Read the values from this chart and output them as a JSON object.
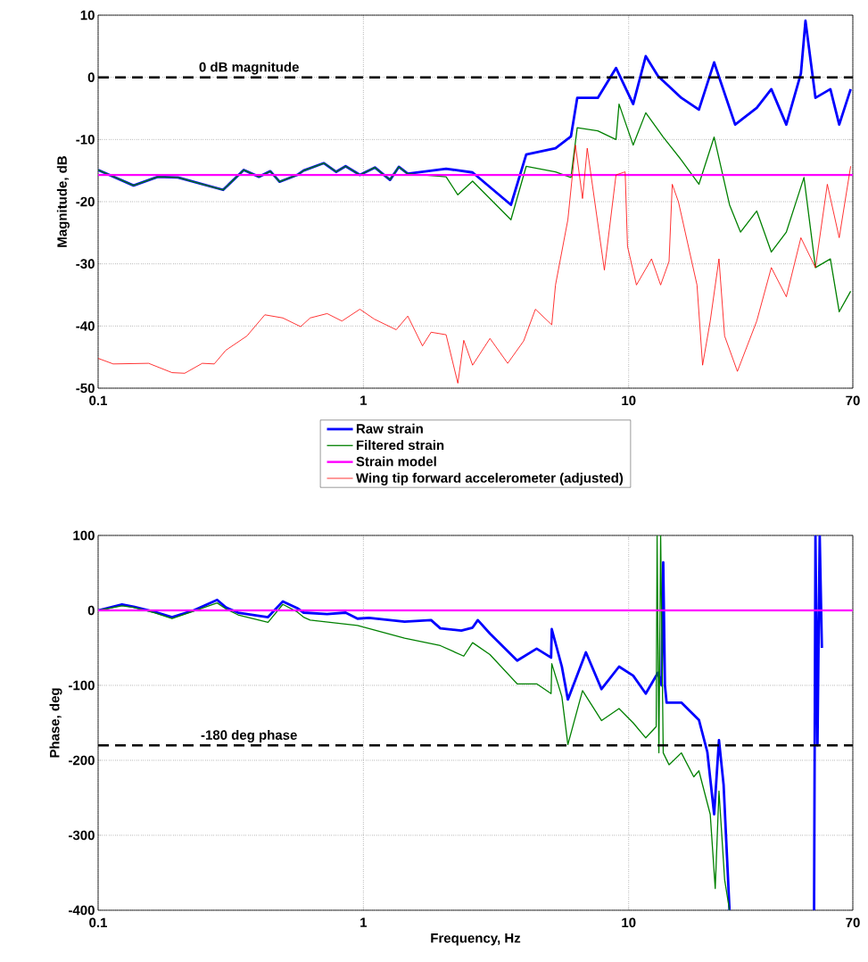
{
  "chart_data": [
    {
      "type": "line",
      "ylabel": "Magnitude, dB",
      "log": "x",
      "grid": true,
      "legend": "bottom",
      "xlim": [
        0.1,
        70
      ],
      "xticks": [
        0.1,
        1,
        10,
        70
      ],
      "ylim": [
        -50,
        10
      ],
      "yticks": [
        -50,
        -40,
        -30,
        -20,
        -10,
        0,
        10
      ],
      "ref_lines": [
        {
          "axis": "y",
          "value": 0,
          "label": "0 dB magnitude",
          "color": "#000000",
          "line_style": "dashed"
        }
      ],
      "series": [
        {
          "name": "Raw strain",
          "color": "#0000ff",
          "x": [
            0.1,
            0.136,
            0.168,
            0.2,
            0.296,
            0.354,
            0.404,
            0.446,
            0.483,
            0.563,
            0.595,
            0.71,
            0.79,
            0.857,
            0.97,
            1.105,
            1.26,
            1.36,
            1.47,
            2.05,
            2.58,
            3.6,
            4.11,
            5.3,
            6.06,
            6.4,
            7.65,
            8.96,
            10.4,
            11.6,
            12.9,
            15.8,
            18.4,
            21.0,
            25.2,
            30.4,
            34.5,
            39.3,
            44.6,
            46.4,
            50.6,
            57.6,
            62.2,
            68.7
          ],
          "values": [
            -14.9,
            -17.4,
            -16,
            -16.1,
            -18.1,
            -14.9,
            -16,
            -15.1,
            -16.8,
            -15.7,
            -15,
            -13.8,
            -15.2,
            -14.3,
            -15.7,
            -14.5,
            -16.5,
            -14.4,
            -15.5,
            -14.7,
            -15.3,
            -20.5,
            -12.4,
            -11.4,
            -9.5,
            -3.3,
            -3.3,
            1.5,
            -4.3,
            3.4,
            0.2,
            -3.3,
            -5.2,
            2.4,
            -7.6,
            -4.9,
            -1.9,
            -7.6,
            0.6,
            9.1,
            -3.3,
            -1.9,
            -7.6,
            -1.9
          ]
        },
        {
          "name": "Filtered strain",
          "color": "#008000",
          "x": [
            0.1,
            0.136,
            0.168,
            0.2,
            0.296,
            0.354,
            0.404,
            0.446,
            0.483,
            0.563,
            0.595,
            0.71,
            0.79,
            0.857,
            0.97,
            1.105,
            1.26,
            1.36,
            1.47,
            2.05,
            2.27,
            2.58,
            3.6,
            4.11,
            5.3,
            6.06,
            6.4,
            7.65,
            8.96,
            9.2,
            10.4,
            11.6,
            13.5,
            15.8,
            18.4,
            21.0,
            24,
            26.4,
            30.4,
            34.5,
            39.3,
            45.8,
            50.6,
            57.6,
            62.2,
            68.7
          ],
          "values": [
            -14.9,
            -17.4,
            -16,
            -16.1,
            -18.1,
            -14.9,
            -16,
            -15.1,
            -16.8,
            -15.7,
            -15,
            -13.8,
            -15.2,
            -14.3,
            -15.7,
            -14.5,
            -16.5,
            -14.4,
            -15.5,
            -16.0,
            -18.9,
            -16.7,
            -22.9,
            -14.3,
            -15.2,
            -16.1,
            -8.1,
            -8.6,
            -10,
            -4.3,
            -10.9,
            -5.7,
            -9.6,
            -13.3,
            -17.2,
            -9.6,
            -20.5,
            -24.9,
            -21.5,
            -28.1,
            -24.9,
            -16.1,
            -30.6,
            -29.2,
            -37.7,
            -34.4
          ]
        },
        {
          "name": "Strain model",
          "color": "#ff00ff",
          "x": [
            0.1,
            70
          ],
          "values": [
            -15.7,
            -15.7
          ]
        },
        {
          "name": "Wing tip forward accelerometer (adjusted)",
          "color": "#ff0000",
          "x": [
            0.1,
            0.114,
            0.155,
            0.19,
            0.212,
            0.247,
            0.274,
            0.303,
            0.364,
            0.425,
            0.497,
            0.58,
            0.63,
            0.73,
            0.83,
            0.97,
            1.1,
            1.33,
            1.47,
            1.67,
            1.8,
            2.05,
            2.27,
            2.39,
            2.58,
            3.0,
            3.5,
            4.02,
            4.45,
            5.13,
            5.3,
            5.9,
            6.3,
            6.7,
            6.98,
            8.1,
            8.96,
            9.7,
            9.9,
            10.7,
            12.2,
            13.2,
            14.2,
            14.6,
            15.4,
            18.1,
            19.0,
            20.3,
            21.9,
            23,
            25.7,
            30.4,
            34.5,
            39.3,
            44.6,
            50.6,
            56.1,
            62.2,
            68.7
          ],
          "values": [
            -45.2,
            -46.1,
            -46,
            -47.5,
            -47.6,
            -46,
            -46.1,
            -43.9,
            -41.6,
            -38.2,
            -38.7,
            -40.1,
            -38.7,
            -38,
            -39.2,
            -37.3,
            -38.9,
            -40.6,
            -38.4,
            -43.2,
            -41,
            -41.4,
            -49.2,
            -42.3,
            -46.3,
            -42,
            -46,
            -42.4,
            -37.3,
            -39.8,
            -33.4,
            -22.9,
            -10.9,
            -19.5,
            -11.4,
            -31,
            -15.7,
            -15.2,
            -27.2,
            -33.4,
            -29.2,
            -33.4,
            -29.6,
            -17.2,
            -20,
            -33.4,
            -46.3,
            -39.2,
            -29.2,
            -41.6,
            -47.3,
            -39.2,
            -30.6,
            -35.3,
            -25.8,
            -30.6,
            -17.2,
            -25.8,
            -14.3
          ]
        }
      ]
    },
    {
      "type": "line",
      "xlabel": "Frequency, Hz",
      "ylabel": "Phase, deg",
      "log": "x",
      "grid": true,
      "xlim": [
        0.1,
        70
      ],
      "xticks": [
        0.1,
        1,
        10,
        70
      ],
      "ylim": [
        -400,
        100
      ],
      "yticks": [
        -400,
        -300,
        -200,
        -100,
        0,
        100
      ],
      "ref_lines": [
        {
          "axis": "y",
          "value": -180,
          "label": "-180 deg phase",
          "color": "#000000",
          "line_style": "dashed"
        }
      ],
      "series": [
        {
          "color": "#0000ff",
          "x": [
            0.1,
            0.123,
            0.136,
            0.163,
            0.19,
            0.229,
            0.281,
            0.303,
            0.337,
            0.437,
            0.497,
            0.563,
            0.595,
            0.73,
            0.857,
            0.95,
            1.05,
            1.43,
            1.8,
            1.95,
            2.34,
            2.58,
            2.7,
            3.0,
            3.8,
            4.5,
            5.1,
            5.13,
            5.6,
            5.9,
            6.9,
            7.9,
            9.2,
            10.4,
            11.6,
            12.9,
            13.3,
            13.5,
            13.7,
            13.9,
            15.8,
            18.4,
            19.8,
            21.0,
            21.9,
            22.8,
            24.0,
            36,
            50.0,
            50.6,
            51.5,
            52.5,
            53.5
          ],
          "values": [
            0,
            8,
            5,
            -2,
            -9,
            0,
            14,
            4,
            -3,
            -9,
            12,
            3,
            -3,
            -5,
            -3,
            -11,
            -10,
            -15,
            -13,
            -24,
            -27,
            -23,
            -13,
            -31,
            -67,
            -51,
            -63,
            -25,
            -75,
            -119,
            -56,
            -105,
            -75,
            -87,
            -111,
            -83,
            -100,
            64,
            -100,
            -123,
            -123,
            -146,
            -189,
            -272,
            -173,
            -233,
            -400,
            null,
            -400,
            100,
            -180,
            100,
            -50
          ]
        },
        {
          "color": "#008000",
          "x": [
            0.1,
            0.123,
            0.136,
            0.163,
            0.19,
            0.229,
            0.281,
            0.303,
            0.337,
            0.437,
            0.497,
            0.563,
            0.595,
            0.63,
            0.95,
            1.43,
            1.95,
            2.39,
            2.58,
            3.0,
            3.8,
            4.5,
            5.1,
            5.13,
            5.6,
            5.9,
            6.7,
            7.9,
            9.2,
            10.4,
            11.6,
            12.7,
            12.8,
            13.0,
            13.2,
            13.5,
            14.2,
            15.8,
            17.6,
            18.4,
            20.3,
            21.2,
            21.9,
            23.0,
            24.0
          ],
          "values": [
            0,
            6,
            4,
            -3,
            -11,
            -1,
            10,
            2,
            -6,
            -16,
            8,
            -2,
            -9,
            -13,
            -20,
            -37,
            -47,
            -61,
            -43,
            -59,
            -98,
            -98,
            -111,
            -71,
            -115,
            -179,
            -107,
            -147,
            -131,
            -150,
            -170,
            -155,
            100,
            -190,
            100,
            -190,
            -206,
            -190,
            -222,
            -214,
            -272,
            -371,
            -241,
            -359,
            -400
          ]
        },
        {
          "color": "#ff00ff",
          "x": [
            0.1,
            70
          ],
          "values": [
            0,
            0
          ]
        }
      ]
    }
  ]
}
